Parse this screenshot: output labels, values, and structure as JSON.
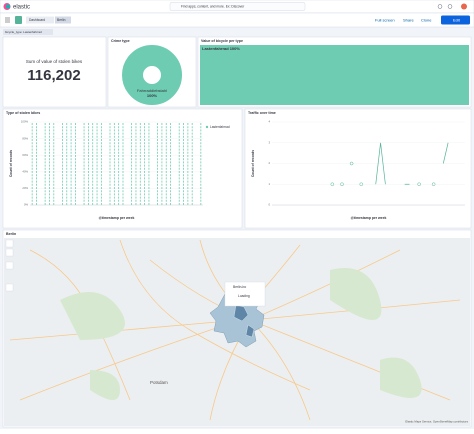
{
  "header": {
    "logo": "elastic",
    "search": "Find apps, content, and more. Ex: Discover"
  },
  "breadcrumbs": [
    "Dashboard",
    "Berlin"
  ],
  "actions": [
    "Full screen",
    "Share",
    "Clone",
    "Edit"
  ],
  "filter": "bicycle_type: Lastenfahrrad",
  "panels": {
    "metric": {
      "label": "Sum of value of stolen bikes",
      "value": "116,202"
    },
    "crime": {
      "title": "Crime type",
      "chart_data": {
        "type": "pie",
        "categories": [
          "Fahrraddiebstahl"
        ],
        "values": [
          100
        ],
        "value_labels": [
          "100%"
        ],
        "color": "#6dccb1"
      }
    },
    "value": {
      "title": "Value of bicycle per type",
      "chart_data": {
        "type": "treemap",
        "categories": [
          "Lastenfahrrad"
        ],
        "values": [
          100
        ],
        "value_labels": [
          "100%"
        ],
        "color": "#6dccb1"
      }
    },
    "types": {
      "title": "Type of stolen bikes",
      "chart_data": {
        "type": "bar",
        "x_label": "@timestamp per week",
        "y_label": "Count of records",
        "ylim": [
          0,
          100
        ],
        "yticks": [
          {
            "value": 0,
            "label": "0%"
          },
          {
            "value": 20,
            "label": "20%"
          },
          {
            "value": 40,
            "label": "40%"
          },
          {
            "value": 60,
            "label": "60%"
          },
          {
            "value": 80,
            "label": "80%"
          },
          {
            "value": 100,
            "label": "100%"
          }
        ],
        "series": [
          {
            "name": "Lastenfahrrad",
            "color": "#6dccb1",
            "values": [
              100,
              100,
              0,
              100,
              100,
              100,
              0,
              100,
              100,
              100,
              100,
              0,
              100,
              100,
              100,
              100,
              100,
              0,
              100,
              100,
              100,
              100,
              0,
              100,
              100,
              100,
              100,
              100,
              0,
              100,
              100,
              100,
              100,
              0,
              100,
              100,
              100,
              100,
              0,
              100
            ]
          }
        ]
      }
    },
    "traffic": {
      "title": "Traffic over time",
      "chart_data": {
        "type": "line",
        "x_label": "@timestamp per week",
        "y_label": "Count of records",
        "ylim": [
          0,
          4
        ],
        "yticks": [
          0,
          1,
          2,
          3,
          4
        ],
        "series": [
          {
            "name": "Count of records",
            "color": "#54b399",
            "values": [
              null,
              null,
              null,
              null,
              null,
              null,
              null,
              null,
              null,
              null,
              null,
              null,
              1,
              null,
              1,
              null,
              2,
              null,
              1,
              null,
              null,
              1,
              3,
              1,
              null,
              null,
              null,
              1,
              1,
              null,
              1,
              null,
              null,
              1,
              null,
              2,
              3,
              null,
              null,
              null
            ]
          }
        ]
      }
    },
    "map": {
      "title": "Berlin",
      "places": [
        "Potsdam"
      ],
      "tooltip": {
        "title": "Berlin-bo",
        "status": "Loading"
      },
      "attribution": "Elastic Maps Service, OpenStreetMap contributors"
    }
  }
}
